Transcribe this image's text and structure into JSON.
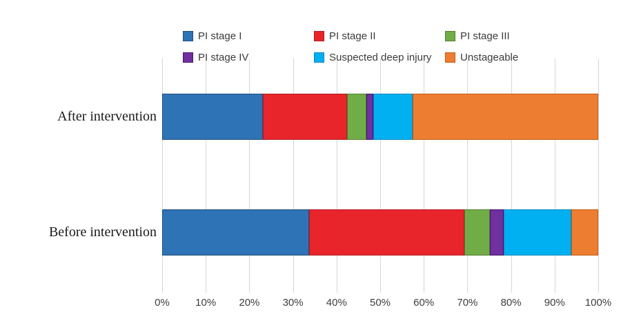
{
  "chart_data": {
    "type": "bar",
    "orientation": "horizontal",
    "stacked": true,
    "title": "",
    "xlabel": "",
    "ylabel": "",
    "categories": [
      "After intervention",
      "Before intervention"
    ],
    "series": [
      {
        "name": "PI stage I",
        "color": "#2e73b5",
        "border": "#1f4e79",
        "values": [
          23.1,
          33.7
        ]
      },
      {
        "name": "PI stage II",
        "color": "#e8252b",
        "border": "#b01e22",
        "values": [
          19.3,
          35.6
        ]
      },
      {
        "name": "PI stage III",
        "color": "#70ad47",
        "border": "#507e32",
        "values": [
          4.4,
          5.8
        ]
      },
      {
        "name": "PI stage IV",
        "color": "#7030a0",
        "border": "#45156b",
        "values": [
          1.7,
          3.3
        ]
      },
      {
        "name": "Suspected deep injury",
        "color": "#00b0f0",
        "border": "#0087be",
        "values": [
          8.9,
          15.4
        ]
      },
      {
        "name": "Unstageable",
        "color": "#ed7d31",
        "border": "#c55a11",
        "values": [
          42.6,
          6.2
        ]
      }
    ],
    "x_axis": {
      "min": 0,
      "max": 100,
      "tick_step": 10,
      "unit": "%",
      "tick_labels": [
        "0%",
        "10%",
        "20%",
        "30%",
        "40%",
        "50%",
        "60%",
        "70%",
        "80%",
        "90%",
        "100%"
      ]
    },
    "legend_position": "top",
    "legend_rows": 2,
    "grid": "vertical"
  },
  "colors": {
    "background": "#ffffff",
    "gridline": "#d6d6d6",
    "axis_text": "#3d3d3d",
    "legend_text": "#3b3b3b",
    "category_text": "#1a1a1a"
  }
}
